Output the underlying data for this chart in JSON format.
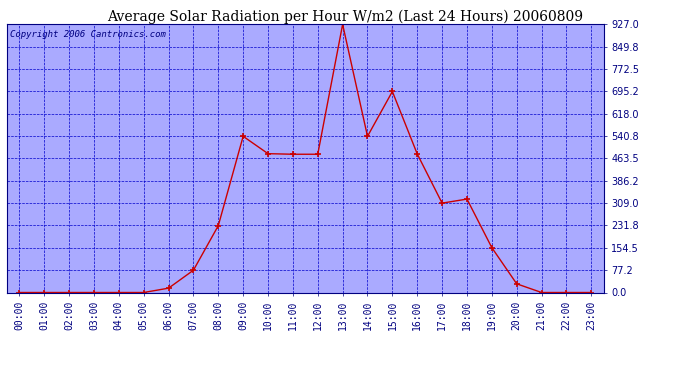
{
  "title": "Average Solar Radiation per Hour W/m2 (Last 24 Hours) 20060809",
  "copyright": "Copyright 2006 Cantronics.com",
  "hours": [
    "00:00",
    "01:00",
    "02:00",
    "03:00",
    "04:00",
    "05:00",
    "06:00",
    "07:00",
    "08:00",
    "09:00",
    "10:00",
    "11:00",
    "12:00",
    "13:00",
    "14:00",
    "15:00",
    "16:00",
    "17:00",
    "18:00",
    "19:00",
    "20:00",
    "21:00",
    "22:00",
    "23:00"
  ],
  "values": [
    0,
    0,
    0,
    0,
    0,
    0,
    15,
    77,
    231,
    540,
    480,
    478,
    478,
    927,
    540,
    695,
    479,
    309,
    323,
    155,
    30,
    0,
    0,
    0
  ],
  "line_color": "#cc0000",
  "marker": "+",
  "marker_size": 5,
  "bg_color": "#aaaaff",
  "grid_color": "#0000cc",
  "yticks": [
    0.0,
    77.2,
    154.5,
    231.8,
    309.0,
    386.2,
    463.5,
    540.8,
    618.0,
    695.2,
    772.5,
    849.8,
    927.0
  ],
  "ymax": 927.0,
  "ymin": 0.0,
  "title_fontsize": 10,
  "copyright_fontsize": 6.5,
  "tick_label_fontsize": 7,
  "y_tick_fontsize": 7
}
